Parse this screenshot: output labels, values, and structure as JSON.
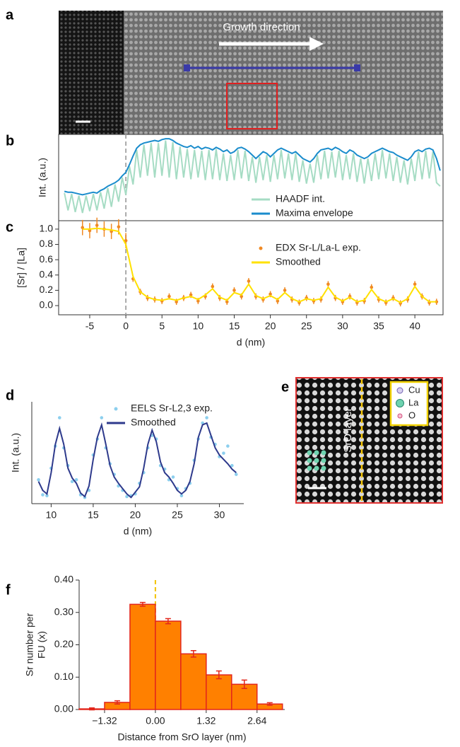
{
  "chart_data": [
    {
      "panel": "b",
      "type": "line",
      "ylabel": "Int. (a.u.)",
      "xlim": [
        -9.3,
        43.9
      ],
      "ylim": [
        0,
        1
      ],
      "vline": 0,
      "legend": "lower right",
      "x": [
        -8.5,
        -8,
        -7.5,
        -7,
        -6.5,
        -6,
        -5.5,
        -5,
        -4.5,
        -4,
        -3.5,
        -3,
        -2.5,
        -2,
        -1.5,
        -1,
        -0.5,
        0,
        0.5,
        1,
        1.5,
        2,
        2.5,
        3,
        3.5,
        4,
        4.5,
        5,
        5.5,
        6,
        6.5,
        7,
        7.5,
        8,
        8.5,
        9,
        9.5,
        10,
        10.5,
        11,
        11.5,
        12,
        12.5,
        13,
        13.5,
        14,
        14.5,
        15,
        15.5,
        16,
        16.5,
        17,
        17.5,
        18,
        18.5,
        19,
        19.5,
        20,
        20.5,
        21,
        21.5,
        22,
        22.5,
        23,
        23.5,
        24,
        24.5,
        25,
        25.5,
        26,
        26.5,
        27,
        27.5,
        28,
        28.5,
        29,
        29.5,
        30,
        30.5,
        31,
        31.5,
        32,
        32.5,
        33,
        33.5,
        34,
        34.5,
        35,
        35.5,
        36,
        36.5,
        37,
        37.5,
        38,
        38.5,
        39,
        39.5,
        40,
        40.5,
        41,
        41.5,
        42,
        42.5,
        43,
        43.5
      ],
      "series": [
        {
          "name": "HAADF int.",
          "color": "#a6dcc4",
          "mode": "lines",
          "values": [
            0.32,
            0.12,
            0.31,
            0.1,
            0.29,
            0.09,
            0.29,
            0.11,
            0.31,
            0.12,
            0.33,
            0.14,
            0.38,
            0.16,
            0.42,
            0.22,
            0.5,
            0.3,
            0.63,
            0.42,
            0.82,
            0.5,
            0.88,
            0.52,
            0.9,
            0.5,
            0.9,
            0.52,
            0.93,
            0.5,
            0.91,
            0.48,
            0.86,
            0.5,
            0.83,
            0.48,
            0.82,
            0.5,
            0.81,
            0.47,
            0.82,
            0.48,
            0.83,
            0.47,
            0.78,
            0.46,
            0.76,
            0.47,
            0.82,
            0.49,
            0.81,
            0.46,
            0.74,
            0.44,
            0.74,
            0.47,
            0.76,
            0.45,
            0.76,
            0.48,
            0.82,
            0.49,
            0.78,
            0.47,
            0.78,
            0.45,
            0.7,
            0.43,
            0.66,
            0.44,
            0.76,
            0.48,
            0.81,
            0.49,
            0.8,
            0.5,
            0.81,
            0.47,
            0.76,
            0.48,
            0.78,
            0.45,
            0.72,
            0.43,
            0.72,
            0.46,
            0.78,
            0.48,
            0.82,
            0.49,
            0.78,
            0.46,
            0.74,
            0.44,
            0.7,
            0.42,
            0.72,
            0.46,
            0.8,
            0.48,
            0.81,
            0.49,
            0.8,
            0.44,
            0.4
          ]
        },
        {
          "name": "Maxima envelope",
          "color": "#1a8ccc",
          "mode": "lines",
          "values": [
            0.34,
            0.33,
            0.33,
            0.32,
            0.31,
            0.3,
            0.31,
            0.32,
            0.33,
            0.32,
            0.35,
            0.37,
            0.4,
            0.42,
            0.44,
            0.47,
            0.52,
            0.56,
            0.65,
            0.75,
            0.84,
            0.88,
            0.9,
            0.91,
            0.92,
            0.93,
            0.92,
            0.94,
            0.95,
            0.95,
            0.93,
            0.9,
            0.88,
            0.86,
            0.85,
            0.87,
            0.84,
            0.86,
            0.83,
            0.85,
            0.84,
            0.82,
            0.85,
            0.83,
            0.8,
            0.82,
            0.78,
            0.8,
            0.84,
            0.85,
            0.83,
            0.8,
            0.76,
            0.72,
            0.76,
            0.8,
            0.78,
            0.74,
            0.78,
            0.82,
            0.84,
            0.82,
            0.8,
            0.78,
            0.8,
            0.76,
            0.72,
            0.7,
            0.68,
            0.72,
            0.78,
            0.82,
            0.83,
            0.84,
            0.82,
            0.85,
            0.83,
            0.8,
            0.78,
            0.82,
            0.8,
            0.76,
            0.74,
            0.72,
            0.74,
            0.78,
            0.8,
            0.82,
            0.84,
            0.82,
            0.8,
            0.79,
            0.76,
            0.74,
            0.72,
            0.7,
            0.74,
            0.8,
            0.82,
            0.8,
            0.83,
            0.84,
            0.82,
            0.72,
            0.58
          ]
        }
      ]
    },
    {
      "panel": "c",
      "type": "line",
      "ylabel": "[Sr] / [La]",
      "xlabel": "d (nm)",
      "xlim": [
        -9.3,
        43.9
      ],
      "ylim": [
        -0.12,
        1.11
      ],
      "vline": 0,
      "legend": "upper right",
      "xticks": [
        -5,
        0,
        5,
        10,
        15,
        20,
        25,
        30,
        35,
        40
      ],
      "yticks": [
        {
          "value": 0,
          "label": "0.0"
        },
        0.2,
        0.4,
        0.6,
        0.8,
        {
          "value": 1,
          "label": "1.0"
        }
      ],
      "x": [
        -6,
        -5,
        -4,
        -3,
        -2,
        -1,
        0,
        1,
        2,
        3,
        4,
        5,
        6,
        7,
        8,
        9,
        10,
        11,
        12,
        13,
        14,
        15,
        16,
        17,
        18,
        19,
        20,
        21,
        22,
        23,
        24,
        25,
        26,
        27,
        28,
        29,
        30,
        31,
        32,
        33,
        34,
        35,
        36,
        37,
        38,
        39,
        40,
        41,
        42,
        43
      ],
      "series": [
        {
          "name": "EDX Sr-L/La-L exp.",
          "color": "#f08a24",
          "mode": "markers",
          "values": [
            1.02,
            0.98,
            1.05,
            1.0,
            0.97,
            1.03,
            0.85,
            0.35,
            0.18,
            0.1,
            0.08,
            0.06,
            0.12,
            0.05,
            0.1,
            0.14,
            0.06,
            0.12,
            0.25,
            0.1,
            0.05,
            0.2,
            0.12,
            0.32,
            0.12,
            0.08,
            0.15,
            0.06,
            0.2,
            0.08,
            0.04,
            0.1,
            0.06,
            0.08,
            0.28,
            0.1,
            0.05,
            0.12,
            0.04,
            0.06,
            0.24,
            0.08,
            0.04,
            0.1,
            0.03,
            0.08,
            0.28,
            0.12,
            0.04,
            0.05
          ],
          "errors": [
            0.1,
            0.1,
            0.1,
            0.1,
            0.1,
            0.1,
            0.1,
            0.04,
            0.04,
            0.04,
            0.04,
            0.04,
            0.04,
            0.04,
            0.04,
            0.04,
            0.04,
            0.04,
            0.04,
            0.04,
            0.04,
            0.04,
            0.04,
            0.04,
            0.04,
            0.04,
            0.04,
            0.04,
            0.04,
            0.04,
            0.04,
            0.04,
            0.04,
            0.04,
            0.04,
            0.04,
            0.04,
            0.04,
            0.04,
            0.04,
            0.04,
            0.04,
            0.04,
            0.04,
            0.04,
            0.04,
            0.04,
            0.04,
            0.04,
            0.04
          ]
        },
        {
          "name": "Smoothed",
          "color": "#ffe100",
          "mode": "lines",
          "values": [
            1.0,
            1.0,
            1.01,
            1.0,
            0.99,
            0.97,
            0.8,
            0.38,
            0.18,
            0.11,
            0.08,
            0.07,
            0.09,
            0.07,
            0.1,
            0.12,
            0.08,
            0.14,
            0.22,
            0.11,
            0.07,
            0.17,
            0.14,
            0.28,
            0.13,
            0.09,
            0.13,
            0.08,
            0.17,
            0.09,
            0.05,
            0.09,
            0.07,
            0.09,
            0.24,
            0.11,
            0.06,
            0.11,
            0.05,
            0.07,
            0.21,
            0.09,
            0.05,
            0.09,
            0.04,
            0.09,
            0.25,
            0.12,
            0.05,
            0.05
          ]
        }
      ]
    },
    {
      "panel": "d",
      "type": "line",
      "ylabel": "Int. (a.u.)",
      "xlabel": "d (nm)",
      "xlim": [
        7.7,
        32.9
      ],
      "ylim": [
        -0.05,
        1.1
      ],
      "legend": "upper right",
      "xticks": [
        10,
        15,
        20,
        25,
        30
      ],
      "x": [
        8.5,
        9,
        9.5,
        10,
        10.5,
        11,
        11.5,
        12,
        12.5,
        13,
        13.5,
        14,
        14.5,
        15,
        15.5,
        16,
        16.5,
        17,
        17.5,
        18,
        18.5,
        19,
        19.5,
        20,
        20.5,
        21,
        21.5,
        22,
        22.5,
        23,
        23.5,
        24,
        24.5,
        25,
        25.5,
        26,
        26.5,
        27,
        27.5,
        28,
        28.5,
        29,
        29.5,
        30,
        30.5,
        31,
        31.5,
        32
      ],
      "series": [
        {
          "name": "EELS Sr-L2,3 exp.",
          "color": "#8ccfee",
          "mode": "markers",
          "values": [
            0.22,
            0.05,
            0.04,
            0.35,
            0.6,
            0.92,
            0.58,
            0.38,
            0.2,
            0.22,
            0.05,
            0.02,
            0.1,
            0.5,
            0.68,
            0.92,
            0.58,
            0.4,
            0.28,
            0.15,
            0.1,
            0.03,
            0.04,
            0.06,
            0.18,
            0.3,
            0.58,
            0.72,
            0.68,
            0.38,
            0.34,
            0.22,
            0.25,
            0.12,
            0.04,
            0.12,
            0.18,
            0.44,
            0.68,
            0.86,
            0.92,
            0.7,
            0.62,
            0.48,
            0.52,
            0.6,
            0.38,
            0.28
          ]
        },
        {
          "name": "Smoothed",
          "color": "#2e3a8c",
          "mode": "lines",
          "values": [
            0.2,
            0.1,
            0.06,
            0.3,
            0.62,
            0.8,
            0.62,
            0.35,
            0.24,
            0.18,
            0.07,
            0.03,
            0.15,
            0.45,
            0.7,
            0.84,
            0.62,
            0.38,
            0.25,
            0.18,
            0.12,
            0.06,
            0.02,
            0.08,
            0.14,
            0.35,
            0.62,
            0.78,
            0.65,
            0.42,
            0.3,
            0.25,
            0.18,
            0.1,
            0.06,
            0.1,
            0.2,
            0.4,
            0.7,
            0.84,
            0.86,
            0.72,
            0.58,
            0.5,
            0.45,
            0.4,
            0.34,
            0.3
          ]
        }
      ]
    },
    {
      "panel": "f",
      "type": "histogram",
      "ylabel": [
        "Sr number per",
        "FU (x)"
      ],
      "xlabel": "Distance from SrO layer (nm)",
      "xlim": [
        -1.98,
        3.36
      ],
      "ylim": [
        0,
        0.4
      ],
      "vline": 0,
      "color": "#ff8000",
      "edgecolor": "#e3261b",
      "xticks": [
        {
          "value": -1.32,
          "label": "−1.32"
        },
        {
          "value": 0,
          "label": "0.00"
        },
        1.32,
        2.64
      ],
      "yticks": [
        {
          "value": 0,
          "label": "0.00"
        },
        {
          "value": 0.1,
          "label": "0.10"
        },
        {
          "value": 0.2,
          "label": "0.20"
        },
        {
          "value": 0.3,
          "label": "0.30"
        },
        {
          "value": 0.4,
          "label": "0.40"
        }
      ],
      "bins": [
        -1.98,
        -1.32,
        -0.66,
        0,
        0.66,
        1.32,
        1.98,
        2.64,
        3.3
      ],
      "values": [
        0.002,
        0.022,
        0.325,
        0.273,
        0.172,
        0.107,
        0.078,
        0.017
      ],
      "errors": [
        0.003,
        0.005,
        0.006,
        0.008,
        0.01,
        0.012,
        0.013,
        0.004
      ]
    }
  ],
  "images": [
    {
      "panel": "a",
      "annotation": "Growth direction"
    },
    {
      "panel": "e",
      "annotation": "SrO layer",
      "legend": [
        "Cu",
        "La",
        "O"
      ]
    }
  ]
}
